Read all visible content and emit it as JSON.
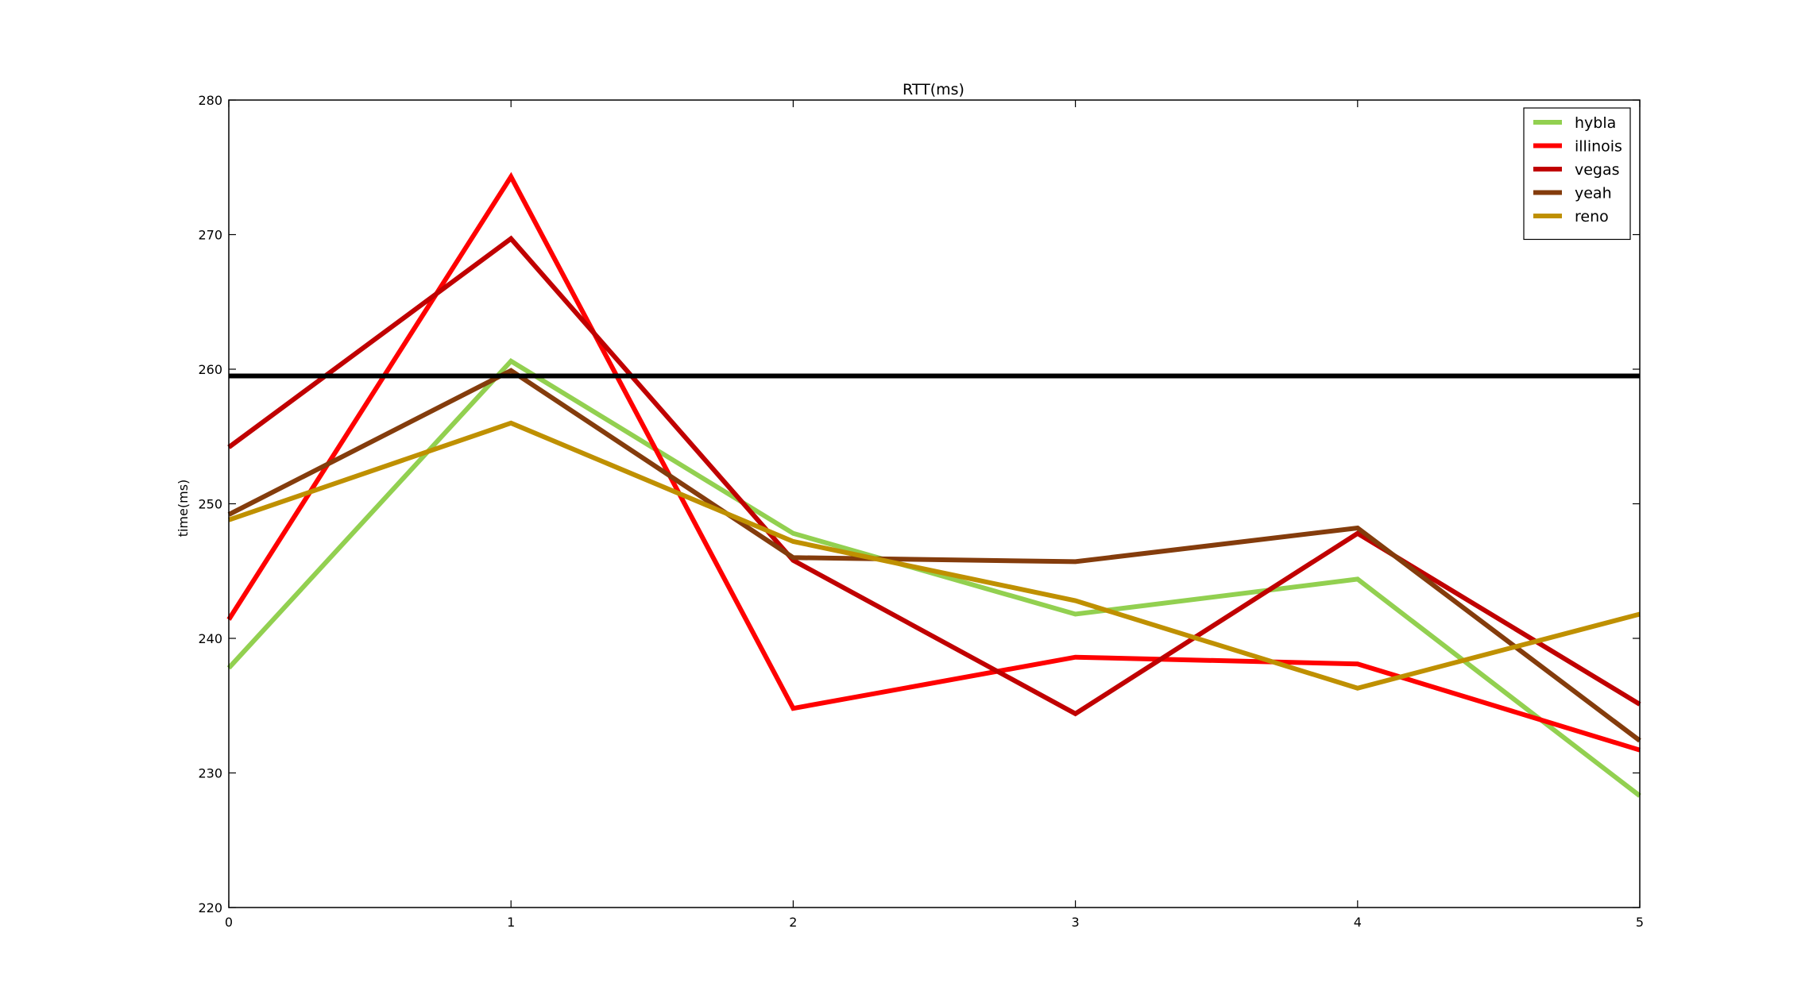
{
  "chart_data": {
    "type": "line",
    "title": "RTT(ms)",
    "xlabel": "",
    "ylabel": "time(ms)",
    "x": [
      0,
      1,
      2,
      3,
      4,
      5
    ],
    "xlim": [
      0,
      5
    ],
    "ylim": [
      220,
      280
    ],
    "xticks": [
      0,
      1,
      2,
      3,
      4,
      5
    ],
    "yticks": [
      220,
      230,
      240,
      250,
      260,
      270,
      280
    ],
    "grid": false,
    "legend_position": "top-right",
    "series": [
      {
        "name": "hybla",
        "color": "#92d050",
        "values": [
          237.8,
          260.6,
          247.8,
          241.8,
          244.4,
          228.3
        ]
      },
      {
        "name": "illinois",
        "color": "#ff0000",
        "values": [
          241.4,
          274.3,
          234.8,
          238.6,
          238.1,
          231.7
        ]
      },
      {
        "name": "vegas",
        "color": "#c00000",
        "values": [
          254.2,
          269.7,
          245.8,
          234.4,
          247.8,
          235.1
        ]
      },
      {
        "name": "yeah",
        "color": "#843c0c",
        "values": [
          249.2,
          259.9,
          246.0,
          245.7,
          248.2,
          232.4
        ]
      },
      {
        "name": "reno",
        "color": "#bf9000",
        "values": [
          248.8,
          256.0,
          247.2,
          242.8,
          236.3,
          241.8
        ]
      }
    ],
    "reference_line": {
      "y": 259.5,
      "color": "#000000"
    }
  }
}
